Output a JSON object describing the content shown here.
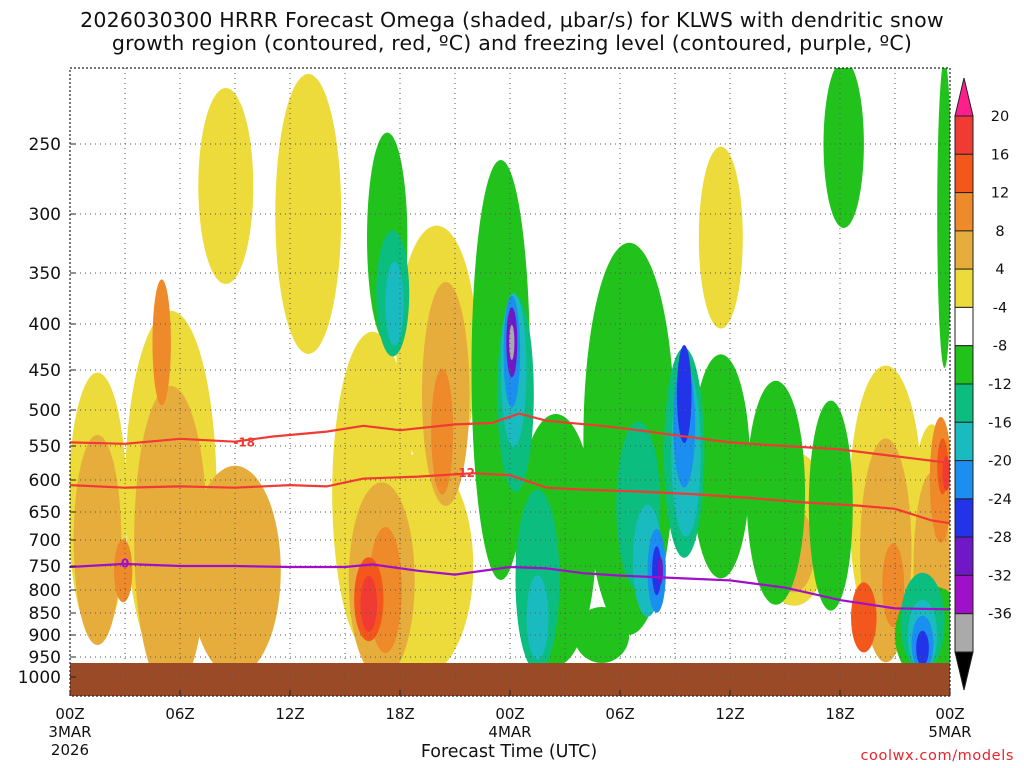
{
  "title_line1": "2026030300 HRRR Forecast Omega (shaded, µbar/s) for KLWS with dendritic snow",
  "title_line2": "growth region (contoured, red, ºC) and freezing level (contoured, purple, ºC)",
  "credit": "coolwx.com/models",
  "chart_data": {
    "type": "heatmap",
    "title": "2026030300 HRRR Forecast Omega (shaded, µbar/s) for KLWS with dendritic snow growth region (contoured, red, ºC) and freezing level (contoured, purple, ºC)",
    "xlabel": "Forecast Time (UTC)",
    "ylabel": "",
    "x_ticks": [
      {
        "hour": 0,
        "label": "00Z",
        "sub1": "3MAR",
        "sub2": "2026"
      },
      {
        "hour": 6,
        "label": "06Z"
      },
      {
        "hour": 12,
        "label": "12Z"
      },
      {
        "hour": 18,
        "label": "18Z"
      },
      {
        "hour": 24,
        "label": "00Z",
        "sub1": "4MAR"
      },
      {
        "hour": 30,
        "label": "06Z"
      },
      {
        "hour": 36,
        "label": "12Z"
      },
      {
        "hour": 42,
        "label": "18Z"
      },
      {
        "hour": 48,
        "label": "00Z",
        "sub1": "5MAR"
      }
    ],
    "xlim": [
      0,
      48
    ],
    "y_ticks": [
      250,
      300,
      350,
      400,
      450,
      500,
      550,
      600,
      650,
      700,
      750,
      800,
      850,
      900,
      950,
      1000
    ],
    "ylim": [
      1020,
      200
    ],
    "ground_hPa": 965,
    "grid": true,
    "colorbar": {
      "labels": [
        "20",
        "16",
        "12",
        "8",
        "4",
        "-4",
        "-8",
        "-12",
        "-16",
        "-20",
        "-24",
        "-28",
        "-32",
        "-36"
      ],
      "colors": [
        "#ff1f8c",
        "#ef3b34",
        "#f4571c",
        "#ee8a29",
        "#e7ad3c",
        "#ecdb3a",
        "#ffffff",
        "#22c21d",
        "#0bbd7f",
        "#1abbc0",
        "#1b8ff0",
        "#2233e8",
        "#7018c8",
        "#a010c8",
        "#aaaaaa",
        "#000000"
      ]
    },
    "shading": [
      {
        "cat": "yellow",
        "color": "#ecdb3a",
        "blobs": [
          [
            1.5,
            640,
            1.6,
            190
          ],
          [
            5.5,
            620,
            2.5,
            260
          ],
          [
            8.5,
            280,
            1.5,
            140
          ],
          [
            13,
            300,
            1.8,
            200
          ],
          [
            16.5,
            620,
            2.2,
            230
          ],
          [
            20,
            430,
            2.2,
            180
          ],
          [
            19,
            750,
            3,
            160
          ],
          [
            30.5,
            680,
            1.6,
            100
          ],
          [
            35.5,
            320,
            1.2,
            130
          ],
          [
            39.5,
            680,
            2,
            110
          ],
          [
            44.5,
            640,
            2,
            200
          ],
          [
            47,
            720,
            1.2,
            180
          ]
        ]
      },
      {
        "cat": "or8",
        "color": "#e7ad3c",
        "blobs": [
          [
            1.5,
            700,
            1.3,
            150
          ],
          [
            5.5,
            700,
            2,
            220
          ],
          [
            9,
            760,
            2.5,
            150
          ],
          [
            17,
            780,
            1.8,
            140
          ],
          [
            20.5,
            480,
            1.3,
            160
          ],
          [
            39.5,
            720,
            1.1,
            60
          ],
          [
            44.5,
            720,
            1.4,
            160
          ],
          [
            47,
            760,
            1,
            140
          ]
        ]
      },
      {
        "cat": "or12",
        "color": "#ee8a29",
        "blobs": [
          [
            2.9,
            760,
            0.5,
            45
          ],
          [
            5,
            420,
            0.5,
            90
          ],
          [
            17.2,
            800,
            0.9,
            90
          ],
          [
            20.3,
            530,
            0.6,
            90
          ],
          [
            44.9,
            790,
            0.6,
            60
          ],
          [
            47.5,
            600,
            0.6,
            90
          ]
        ]
      },
      {
        "cat": "or16",
        "color": "#f4571c",
        "blobs": [
          [
            16.3,
            820,
            0.8,
            60
          ],
          [
            43.3,
            860,
            0.7,
            50
          ],
          [
            47.6,
            580,
            0.3,
            40
          ]
        ]
      },
      {
        "cat": "red20",
        "color": "#ef3b34",
        "blobs": [
          [
            16.3,
            830,
            0.45,
            40
          ],
          [
            47.8,
            590,
            0.2,
            25
          ]
        ]
      },
      {
        "cat": "green",
        "color": "#22c21d",
        "blobs": [
          [
            17.3,
            320,
            1.1,
            150
          ],
          [
            23.5,
            450,
            1.6,
            300
          ],
          [
            26.5,
            700,
            2.2,
            180
          ],
          [
            30.5,
            540,
            2.5,
            280
          ],
          [
            35.5,
            580,
            1.6,
            160
          ],
          [
            38.5,
            620,
            1.6,
            160
          ],
          [
            41.5,
            640,
            1.2,
            150
          ],
          [
            42.2,
            250,
            1.1,
            120
          ],
          [
            47.7,
            300,
            0.4,
            220
          ],
          [
            29,
            900,
            1.5,
            40
          ],
          [
            47,
            900,
            2,
            70
          ]
        ]
      },
      {
        "cat": "tq",
        "color": "#0bbd7f",
        "blobs": [
          [
            17.6,
            370,
            0.9,
            90
          ],
          [
            24.3,
            480,
            1,
            140
          ],
          [
            25.5,
            780,
            1.2,
            130
          ],
          [
            31,
            640,
            1.2,
            120
          ],
          [
            33.5,
            560,
            1.1,
            150
          ],
          [
            46.5,
            870,
            1.2,
            70
          ]
        ]
      },
      {
        "cat": "cy",
        "color": "#1abbc0",
        "blobs": [
          [
            17.7,
            380,
            0.5,
            60
          ],
          [
            24.2,
            450,
            0.7,
            110
          ],
          [
            31.5,
            740,
            0.8,
            80
          ],
          [
            33.6,
            560,
            0.8,
            120
          ],
          [
            25.5,
            860,
            0.6,
            60
          ],
          [
            46.5,
            900,
            0.8,
            50
          ]
        ]
      },
      {
        "cat": "lb",
        "color": "#1b8ff0",
        "blobs": [
          [
            24.1,
            430,
            0.45,
            80
          ],
          [
            32,
            760,
            0.5,
            60
          ],
          [
            33.5,
            520,
            0.6,
            90
          ],
          [
            46.5,
            920,
            0.6,
            40
          ]
        ]
      },
      {
        "cat": "db",
        "color": "#2233e8",
        "blobs": [
          [
            33.5,
            480,
            0.4,
            70
          ],
          [
            32,
            760,
            0.25,
            35
          ],
          [
            46.5,
            930,
            0.35,
            25
          ]
        ]
      },
      {
        "cat": "pur",
        "color": "#7018c8",
        "blobs": [
          [
            24.1,
            420,
            0.3,
            50
          ],
          [
            32.2,
            760,
            0.15,
            20
          ]
        ]
      },
      {
        "cat": "gray",
        "color": "#aaaaaa",
        "blobs": [
          [
            24.1,
            420,
            0.14,
            25
          ]
        ]
      }
    ],
    "contours": [
      {
        "name": "-18",
        "color": "#ef3b34",
        "label_x": 9.5,
        "label_y": 545,
        "points": [
          [
            0,
            545
          ],
          [
            3,
            547
          ],
          [
            6,
            540
          ],
          [
            9,
            544
          ],
          [
            11,
            537
          ],
          [
            14,
            530
          ],
          [
            16,
            522
          ],
          [
            18,
            528
          ],
          [
            21,
            520
          ],
          [
            23,
            518
          ],
          [
            24.5,
            505
          ],
          [
            26,
            515
          ],
          [
            29,
            522
          ],
          [
            31,
            528
          ],
          [
            33,
            535
          ],
          [
            36,
            545
          ],
          [
            39,
            550
          ],
          [
            42,
            555
          ],
          [
            45,
            565
          ],
          [
            48,
            575
          ]
        ]
      },
      {
        "name": "-12",
        "color": "#ef3b34",
        "label_x": 21.5,
        "label_y": 590,
        "points": [
          [
            0,
            608
          ],
          [
            3,
            612
          ],
          [
            6,
            610
          ],
          [
            9,
            612
          ],
          [
            12,
            608
          ],
          [
            14,
            610
          ],
          [
            16,
            598
          ],
          [
            19,
            595
          ],
          [
            22,
            590
          ],
          [
            24,
            593
          ],
          [
            26,
            612
          ],
          [
            28,
            615
          ],
          [
            31,
            618
          ],
          [
            34,
            622
          ],
          [
            37,
            628
          ],
          [
            40,
            635
          ],
          [
            43,
            640
          ],
          [
            45,
            645
          ],
          [
            47,
            665
          ],
          [
            48,
            670
          ]
        ]
      },
      {
        "name": "0",
        "color": "#a010c8",
        "label_x": 3,
        "label_y": 745,
        "points": [
          [
            0,
            752
          ],
          [
            3,
            746
          ],
          [
            6,
            750
          ],
          [
            9,
            750
          ],
          [
            12,
            752
          ],
          [
            15,
            752
          ],
          [
            16.5,
            747
          ],
          [
            19,
            760
          ],
          [
            21,
            768
          ],
          [
            24,
            752
          ],
          [
            26,
            755
          ],
          [
            28,
            765
          ],
          [
            30,
            770
          ],
          [
            33,
            775
          ],
          [
            36,
            780
          ],
          [
            39,
            795
          ],
          [
            42,
            822
          ],
          [
            45,
            840
          ],
          [
            48,
            842
          ]
        ]
      }
    ]
  }
}
